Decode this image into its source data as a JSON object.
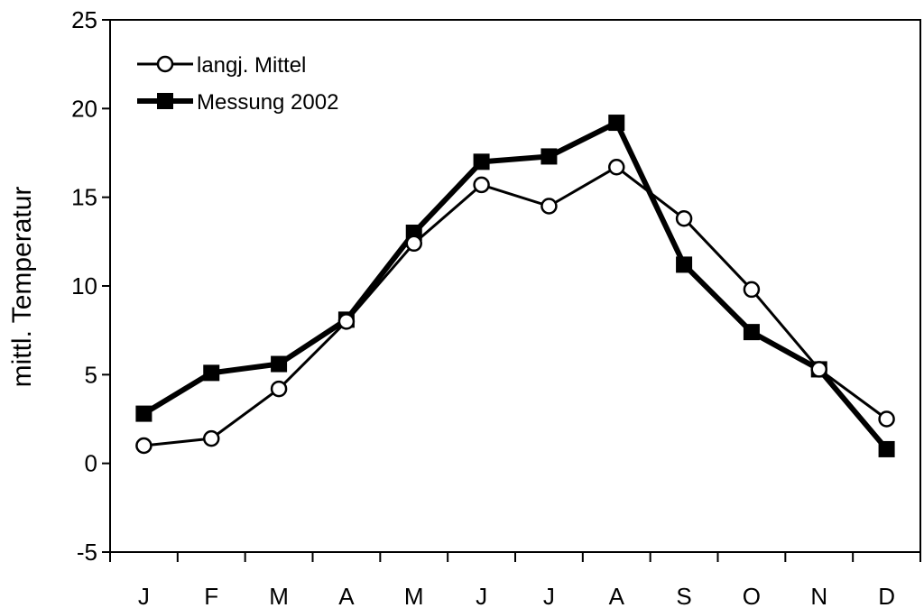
{
  "chart_data": {
    "type": "line",
    "title": "",
    "xlabel": "",
    "ylabel": "mittl. Temperatur",
    "categories": [
      "J",
      "F",
      "M",
      "A",
      "M",
      "J",
      "J",
      "A",
      "S",
      "O",
      "N",
      "D"
    ],
    "ylim": [
      -5,
      25
    ],
    "yticks": [
      "-5",
      "0",
      "5",
      "10",
      "15",
      "20",
      "25"
    ],
    "grid": false,
    "legend_position": "top-left",
    "series": [
      {
        "name": "langj. Mittel",
        "marker": "open-circle",
        "color": "#000000",
        "values": [
          1.0,
          1.4,
          4.2,
          8.0,
          12.4,
          15.7,
          14.5,
          16.7,
          13.8,
          9.8,
          5.3,
          2.5
        ]
      },
      {
        "name": "Messung 2002",
        "marker": "filled-square",
        "color": "#000000",
        "values": [
          2.8,
          5.1,
          5.6,
          8.1,
          13.0,
          17.0,
          17.3,
          19.2,
          11.2,
          7.4,
          5.3,
          0.8
        ]
      }
    ]
  }
}
